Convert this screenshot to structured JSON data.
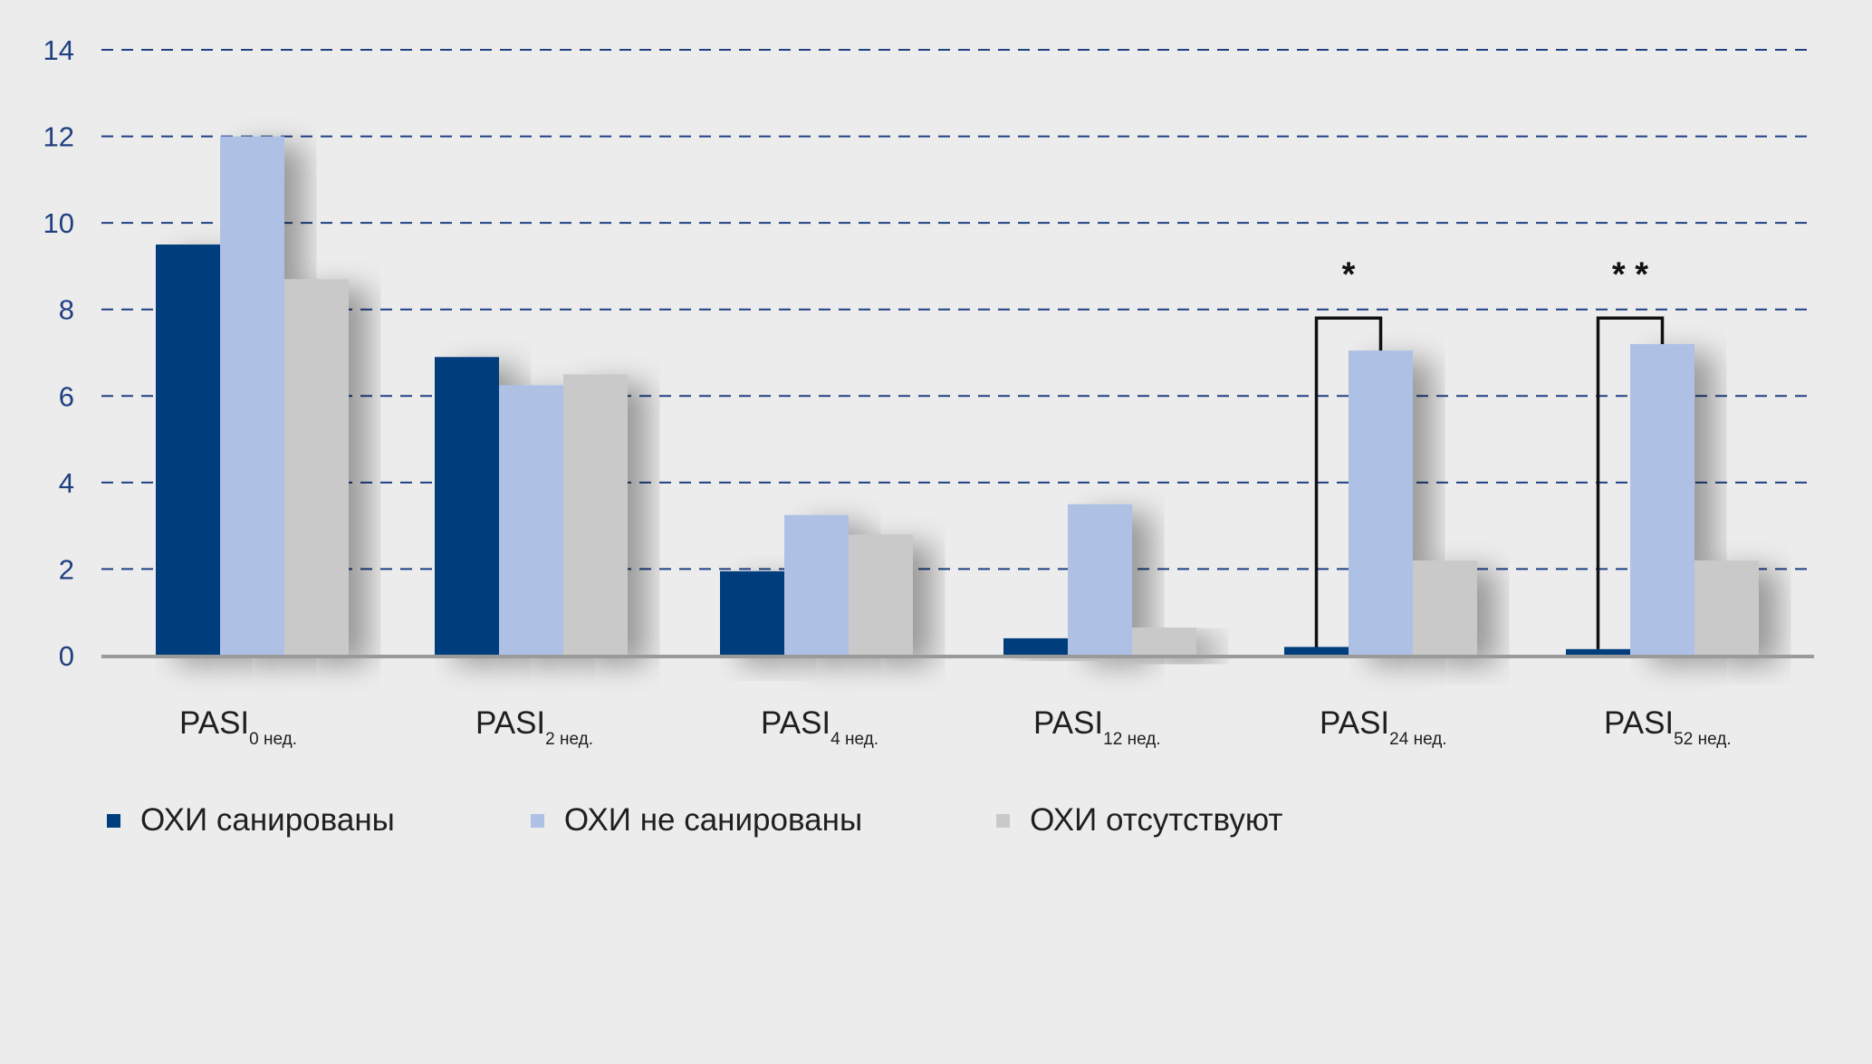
{
  "chart_data": {
    "type": "bar",
    "title": "",
    "xlabel": "",
    "ylabel": "",
    "ylim": [
      0,
      14
    ],
    "yticks": [
      "0",
      "2",
      "4",
      "6",
      "8",
      "10",
      "12",
      "14"
    ],
    "grid": true,
    "categories": [
      {
        "main": "PASI",
        "sub": "0 нед."
      },
      {
        "main": "PASI",
        "sub": "2 нед."
      },
      {
        "main": "PASI",
        "sub": "4 нед."
      },
      {
        "main": "PASI",
        "sub": "12 нед."
      },
      {
        "main": "PASI",
        "sub": "24 нед."
      },
      {
        "main": "PASI",
        "sub": "52 нед."
      }
    ],
    "series": [
      {
        "name": "ОХИ санированы",
        "color": "#003d7d",
        "values": [
          9.5,
          6.9,
          1.95,
          0.4,
          0.2,
          0.15
        ]
      },
      {
        "name": "ОХИ не санированы",
        "color": "#aec1e5",
        "values": [
          12.0,
          6.25,
          3.25,
          3.5,
          7.05,
          7.2
        ]
      },
      {
        "name": "ОХИ отсутствуют",
        "color": "#c9c9c9",
        "values": [
          8.7,
          6.5,
          2.8,
          0.65,
          2.2,
          2.2
        ]
      }
    ],
    "annotations": [
      {
        "category_index": 4,
        "bracket_top": 7.8,
        "text": "*"
      },
      {
        "category_index": 5,
        "bracket_top": 7.8,
        "text": "* *"
      }
    ],
    "legend_position": "bottom-left"
  }
}
